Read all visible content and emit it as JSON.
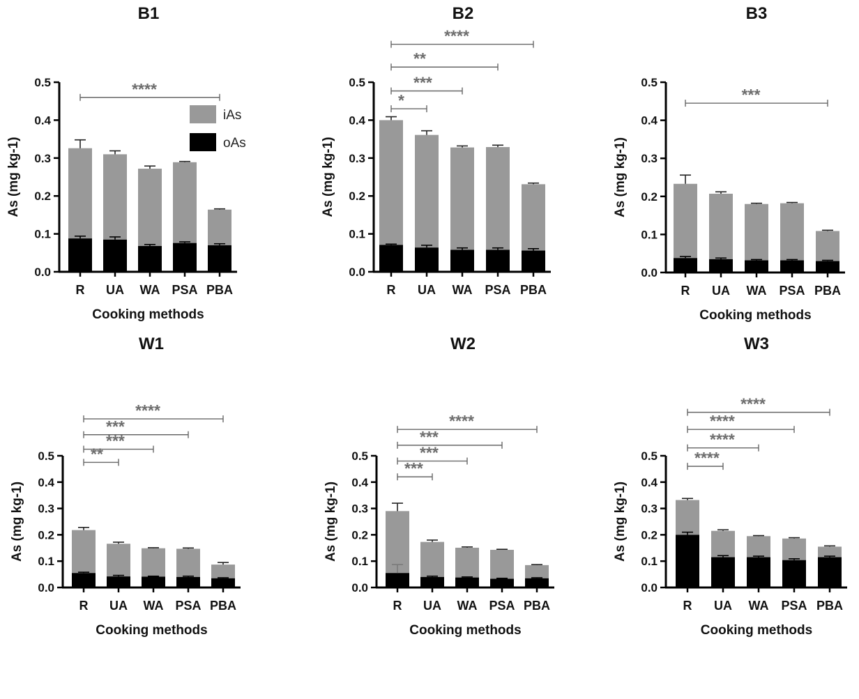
{
  "chart_data": [
    {
      "type": "bar",
      "stacked": true,
      "title": "B1",
      "xlabel": "Cooking methods",
      "ylabel": "As (mg kg-1)",
      "ylim": [
        0,
        0.5
      ],
      "yticks": [
        "0.0",
        "0.1",
        "0.2",
        "0.3",
        "0.4",
        "0.5"
      ],
      "categories": [
        "R",
        "UA",
        "WA",
        "PSA",
        "PBA"
      ],
      "series": [
        {
          "name": "oAs",
          "color": "#000000",
          "values": [
            0.088,
            0.085,
            0.068,
            0.076,
            0.07
          ],
          "errors": [
            0.006,
            0.007,
            0.004,
            0.003,
            0.004
          ]
        },
        {
          "name": "iAs",
          "color": "#999999",
          "values": [
            0.238,
            0.225,
            0.204,
            0.213,
            0.094
          ],
          "errors": [
            0.022,
            0.009,
            0.007,
            0.002,
            0.002
          ]
        }
      ],
      "totals": [
        0.326,
        0.31,
        0.272,
        0.289,
        0.164
      ],
      "legend": "top-right",
      "significance": [
        {
          "from": "R",
          "to": "PBA",
          "label": "****",
          "y": 0.46
        }
      ]
    },
    {
      "type": "bar",
      "stacked": true,
      "title": "B2",
      "xlabel": "",
      "ylabel": "As (mg kg-1)",
      "ylim": [
        0,
        0.5
      ],
      "yticks": [
        "0.0",
        "0.1",
        "0.2",
        "0.3",
        "0.4",
        "0.5"
      ],
      "categories": [
        "R",
        "UA",
        "WA",
        "PSA",
        "PBA"
      ],
      "series": [
        {
          "name": "oAs",
          "color": "#000000",
          "values": [
            0.071,
            0.064,
            0.058,
            0.058,
            0.056
          ],
          "errors": [
            0.002,
            0.006,
            0.005,
            0.005,
            0.005
          ]
        },
        {
          "name": "iAs",
          "color": "#999999",
          "values": [
            0.329,
            0.297,
            0.27,
            0.271,
            0.175
          ],
          "errors": [
            0.009,
            0.011,
            0.004,
            0.005,
            0.003
          ]
        }
      ],
      "totals": [
        0.4,
        0.361,
        0.328,
        0.329,
        0.231
      ],
      "significance": [
        {
          "from": "R",
          "to": "UA",
          "label": "*",
          "y": 0.43
        },
        {
          "from": "R",
          "to": "WA",
          "label": "***",
          "y": 0.477
        },
        {
          "from": "R",
          "to": "PSA",
          "label": "**",
          "y": 0.54
        },
        {
          "from": "R",
          "to": "PBA",
          "label": "****",
          "y": 0.6
        }
      ]
    },
    {
      "type": "bar",
      "stacked": true,
      "title": "B3",
      "xlabel": "Cooking methods",
      "ylabel": "As (mg kg-1)",
      "ylim": [
        0,
        0.5
      ],
      "yticks": [
        "0.0",
        "0.1",
        "0.2",
        "0.3",
        "0.4",
        "0.5"
      ],
      "categories": [
        "R",
        "UA",
        "WA",
        "PSA",
        "PBA"
      ],
      "series": [
        {
          "name": "oAs",
          "color": "#000000",
          "values": [
            0.038,
            0.035,
            0.032,
            0.032,
            0.03
          ],
          "errors": [
            0.004,
            0.003,
            0.002,
            0.002,
            0.002
          ]
        },
        {
          "name": "iAs",
          "color": "#999999",
          "values": [
            0.195,
            0.172,
            0.148,
            0.15,
            0.079
          ],
          "errors": [
            0.023,
            0.005,
            0.002,
            0.002,
            0.002
          ]
        }
      ],
      "totals": [
        0.233,
        0.207,
        0.18,
        0.182,
        0.109
      ],
      "significance": [
        {
          "from": "R",
          "to": "PBA",
          "label": "***",
          "y": 0.445
        }
      ]
    },
    {
      "type": "bar",
      "stacked": true,
      "title": "W1",
      "xlabel": "Cooking methods",
      "ylabel": "As (mg kg-1)",
      "ylim": [
        0,
        0.5
      ],
      "yticks": [
        "0.0",
        "0.1",
        "0.2",
        "0.3",
        "0.4",
        "0.5"
      ],
      "categories": [
        "R",
        "UA",
        "WA",
        "PSA",
        "PBA"
      ],
      "series": [
        {
          "name": "oAs",
          "color": "#000000",
          "values": [
            0.055,
            0.042,
            0.041,
            0.04,
            0.035
          ],
          "errors": [
            0.003,
            0.004,
            0.002,
            0.003,
            0.002
          ]
        },
        {
          "name": "iAs",
          "color": "#999999",
          "values": [
            0.163,
            0.124,
            0.108,
            0.107,
            0.052
          ],
          "errors": [
            0.01,
            0.006,
            0.002,
            0.003,
            0.008
          ]
        }
      ],
      "totals": [
        0.218,
        0.166,
        0.149,
        0.147,
        0.087
      ],
      "significance": [
        {
          "from": "R",
          "to": "UA",
          "label": "**",
          "y": 0.475
        },
        {
          "from": "R",
          "to": "WA",
          "label": "***",
          "y": 0.525
        },
        {
          "from": "R",
          "to": "PSA",
          "label": "***",
          "y": 0.58
        },
        {
          "from": "R",
          "to": "PBA",
          "label": "****",
          "y": 0.64
        }
      ]
    },
    {
      "type": "bar",
      "stacked": true,
      "title": "W2",
      "xlabel": "Cooking methods",
      "ylabel": "As (mg kg-1)",
      "ylim": [
        0,
        0.5
      ],
      "yticks": [
        "0.0",
        "0.1",
        "0.2",
        "0.3",
        "0.4",
        "0.5"
      ],
      "categories": [
        "R",
        "UA",
        "WA",
        "PSA",
        "PBA"
      ],
      "series": [
        {
          "name": "oAs",
          "color": "#000000",
          "values": [
            0.055,
            0.04,
            0.038,
            0.033,
            0.035
          ],
          "errors": [
            0.032,
            0.003,
            0.002,
            0.002,
            0.002
          ]
        },
        {
          "name": "iAs",
          "color": "#999999",
          "values": [
            0.235,
            0.133,
            0.113,
            0.11,
            0.05
          ],
          "errors": [
            0.03,
            0.007,
            0.003,
            0.002,
            0.002
          ]
        }
      ],
      "totals": [
        0.29,
        0.173,
        0.151,
        0.143,
        0.085
      ],
      "significance": [
        {
          "from": "R",
          "to": "UA",
          "label": "***",
          "y": 0.42
        },
        {
          "from": "R",
          "to": "WA",
          "label": "***",
          "y": 0.48
        },
        {
          "from": "R",
          "to": "PSA",
          "label": "***",
          "y": 0.54
        },
        {
          "from": "R",
          "to": "PBA",
          "label": "****",
          "y": 0.6
        }
      ]
    },
    {
      "type": "bar",
      "stacked": true,
      "title": "W3",
      "xlabel": "Cooking methods",
      "ylabel": "As (mg kg-1)",
      "ylim": [
        0,
        0.5
      ],
      "yticks": [
        "0.0",
        "0.1",
        "0.2",
        "0.3",
        "0.4",
        "0.5"
      ],
      "categories": [
        "R",
        "UA",
        "WA",
        "PSA",
        "PBA"
      ],
      "series": [
        {
          "name": "oAs",
          "color": "#000000",
          "values": [
            0.2,
            0.115,
            0.115,
            0.104,
            0.115
          ],
          "errors": [
            0.01,
            0.006,
            0.004,
            0.005,
            0.004
          ]
        },
        {
          "name": "iAs",
          "color": "#999999",
          "values": [
            0.132,
            0.1,
            0.08,
            0.082,
            0.04
          ],
          "errors": [
            0.006,
            0.004,
            0.002,
            0.003,
            0.003
          ]
        }
      ],
      "totals": [
        0.332,
        0.215,
        0.195,
        0.186,
        0.155
      ],
      "significance": [
        {
          "from": "R",
          "to": "UA",
          "label": "****",
          "y": 0.46
        },
        {
          "from": "R",
          "to": "WA",
          "label": "****",
          "y": 0.53
        },
        {
          "from": "R",
          "to": "PSA",
          "label": "****",
          "y": 0.6
        },
        {
          "from": "R",
          "to": "PBA",
          "label": "****",
          "y": 0.665
        }
      ]
    }
  ]
}
